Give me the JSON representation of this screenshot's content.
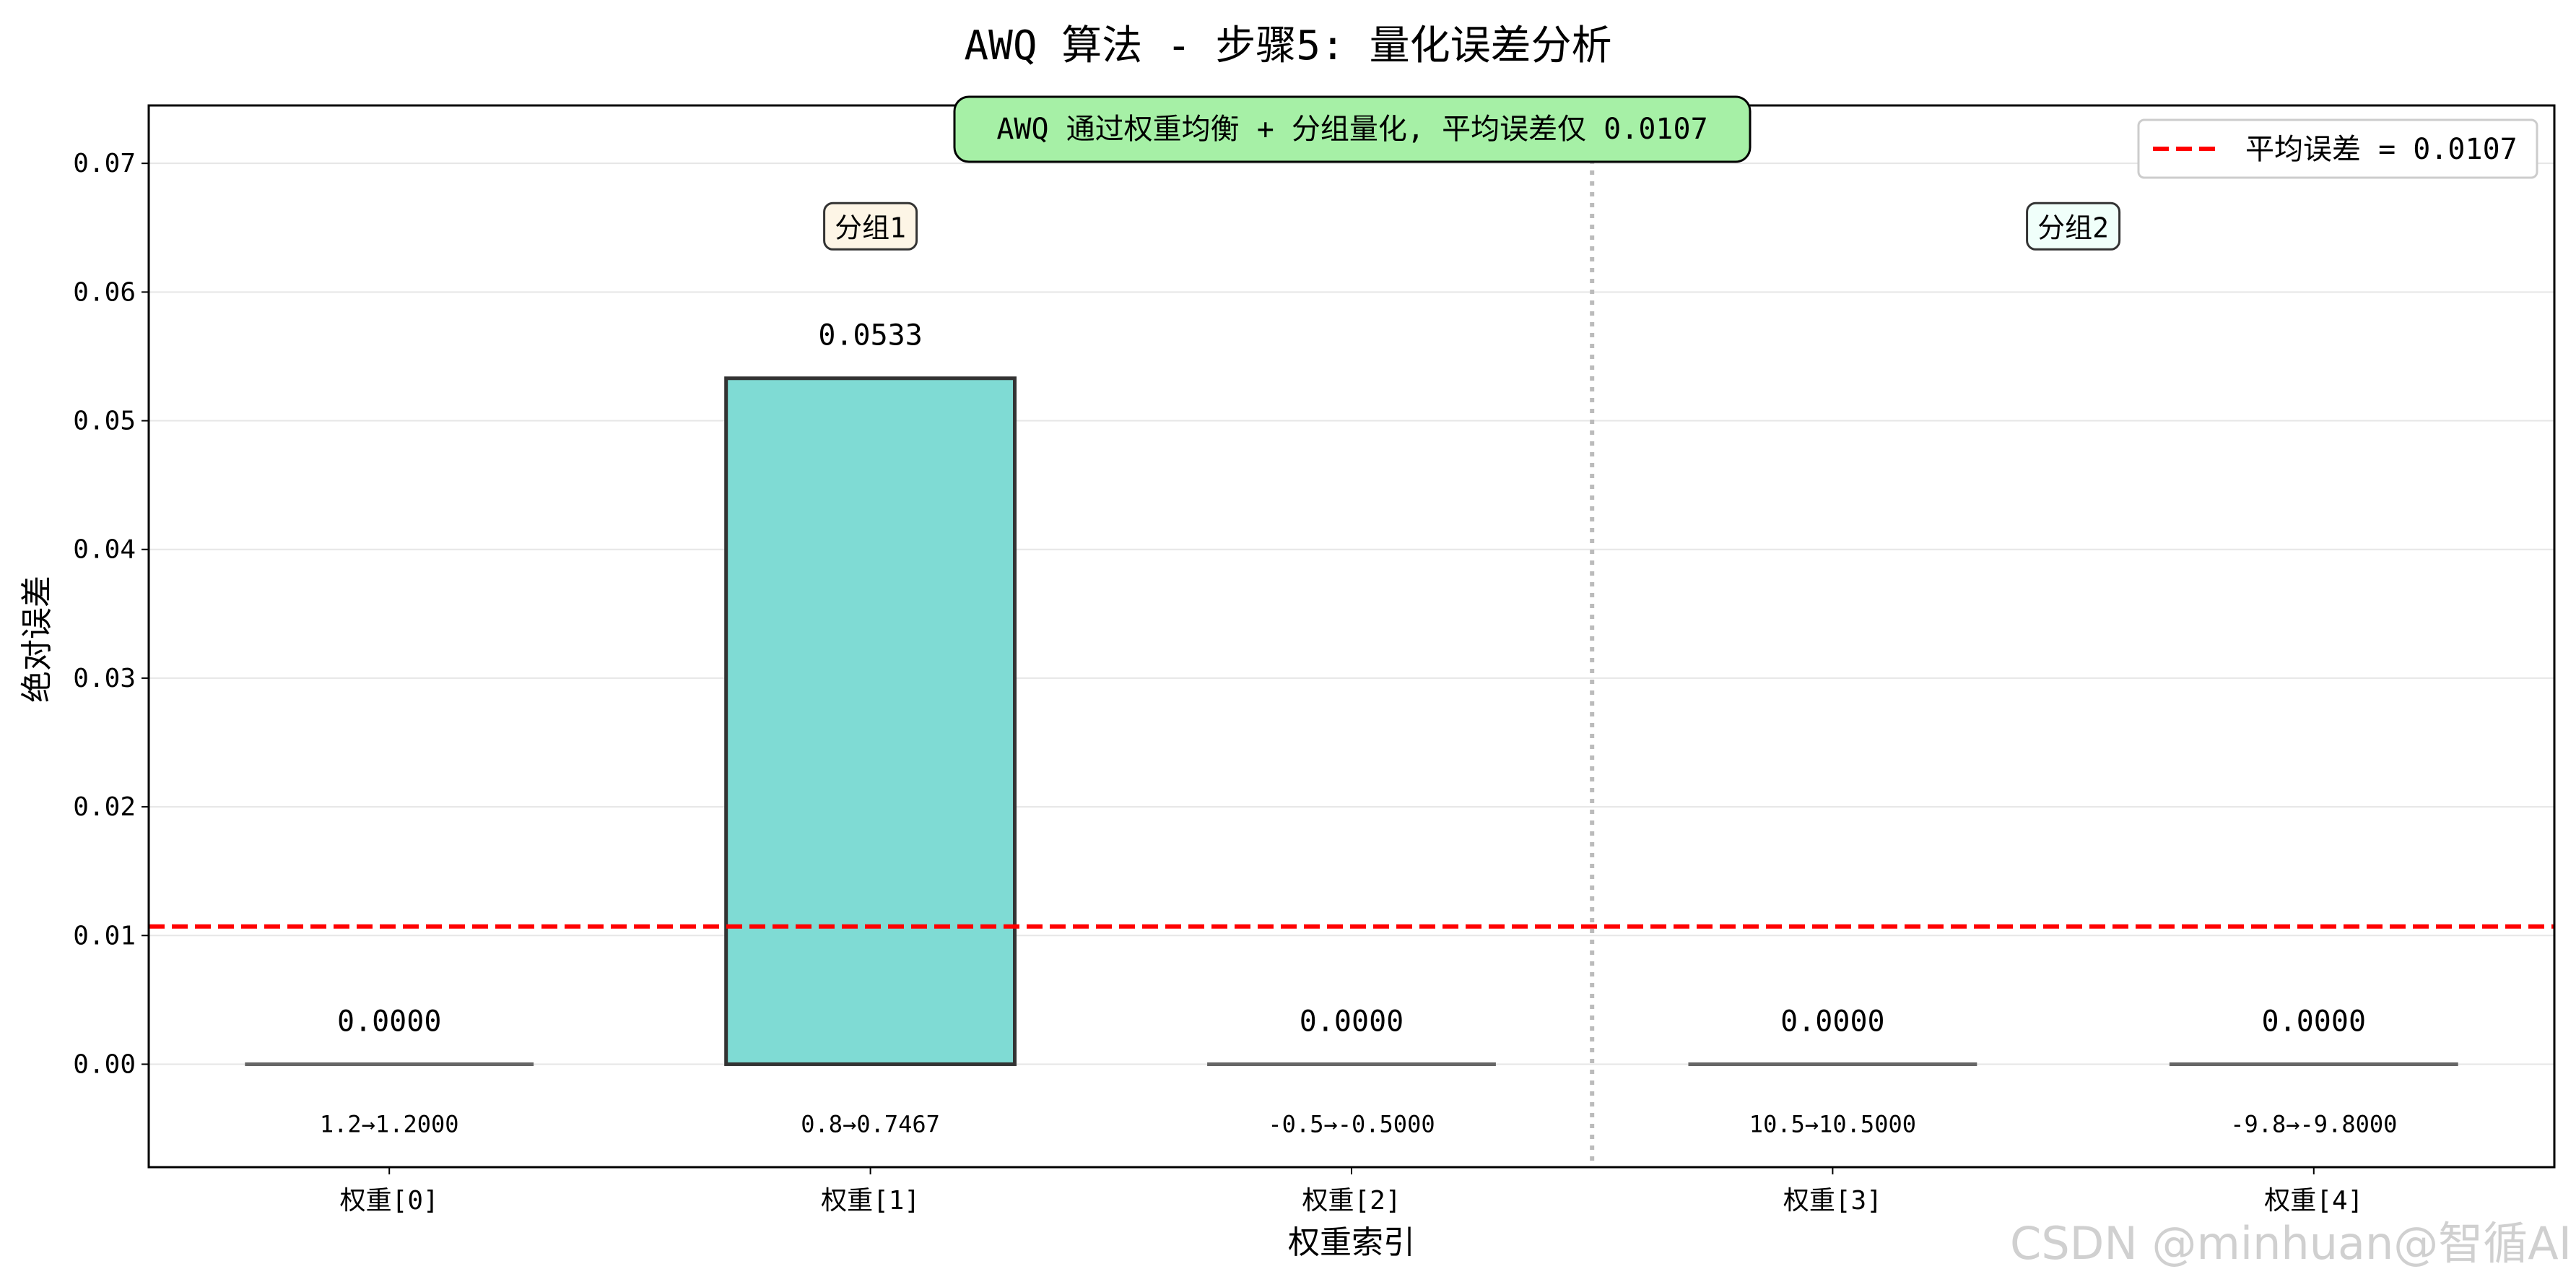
{
  "chart_data": {
    "type": "bar",
    "title": "AWQ 算法 - 步骤5: 量化误差分析",
    "xlabel": "权重索引",
    "ylabel": "绝对误差",
    "categories": [
      "权重[0]",
      "权重[1]",
      "权重[2]",
      "权重[3]",
      "权重[4]"
    ],
    "values": [
      0.0,
      0.0533,
      0.0,
      0.0,
      0.0
    ],
    "value_labels": [
      "0.0000",
      "0.0533",
      "0.0000",
      "0.0000",
      "0.0000"
    ],
    "bar_annotations": [
      "1.2→1.2000",
      "0.8→0.7467",
      "-0.5→-0.5000",
      "10.5→10.5000",
      "-9.8→-9.8000"
    ],
    "ylim": [
      -0.008,
      0.0745
    ],
    "yticks": [
      0.0,
      0.01,
      0.02,
      0.03,
      0.04,
      0.05,
      0.06,
      0.07
    ],
    "ytick_labels": [
      "0.00",
      "0.01",
      "0.02",
      "0.03",
      "0.04",
      "0.05",
      "0.06",
      "0.07"
    ],
    "grid": "horizontal",
    "mean_line": {
      "value": 0.0107,
      "label": "平均误差 = 0.0107",
      "color": "#ff0000"
    },
    "group_divider_x": 2.5,
    "groups": [
      {
        "label": "分组1",
        "center_x": 1,
        "y": 0.065
      },
      {
        "label": "分组2",
        "center_x": 3.5,
        "y": 0.065
      }
    ],
    "note": "AWQ 通过权重均衡 + 分组量化, 平均误差仅 0.0107",
    "legend": {
      "placement": "top-right",
      "entries": [
        "平均误差 = 0.0107"
      ]
    },
    "colors": {
      "bar": "#7fdbd4",
      "bar_edge": "#333333",
      "zero_line": "#666666",
      "note_bg": "#a6f0a6",
      "group1_bg": "#fdf5e6",
      "group2_bg": "#f0fffa",
      "divider": "#bbbbbb"
    }
  },
  "watermark": "CSDN @minhuan@智循AI"
}
